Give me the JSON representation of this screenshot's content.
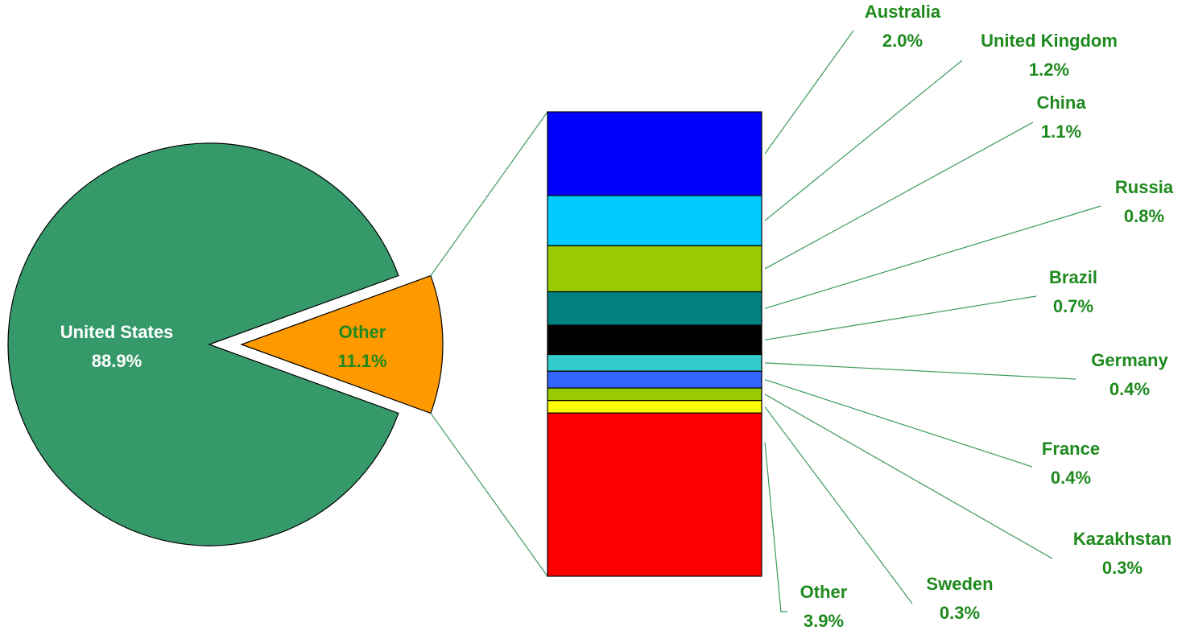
{
  "colors": {
    "label_text": "#1e8a1e",
    "pie_label_text": "#ffffff",
    "leader_line": "#3a9a5a",
    "outline": "#000000"
  },
  "chart_data": {
    "type": "pie",
    "subtype": "bar-of-pie",
    "title": "",
    "grid": false,
    "legend": "none",
    "pie": [
      {
        "name": "United States",
        "value": 88.9,
        "label": "88.9%",
        "color": "#35996a",
        "exploded": false
      },
      {
        "name": "Other",
        "value": 11.1,
        "label": "11.1%",
        "color": "#ff9900",
        "exploded": true
      }
    ],
    "bar": [
      {
        "name": "Australia",
        "value": 2.0,
        "label": "2.0%",
        "color": "#0000ff"
      },
      {
        "name": "United Kingdom",
        "value": 1.2,
        "label": "1.2%",
        "color": "#00ccff"
      },
      {
        "name": "China",
        "value": 1.1,
        "label": "1.1%",
        "color": "#99cc00"
      },
      {
        "name": "Russia",
        "value": 0.8,
        "label": "0.8%",
        "color": "#008080"
      },
      {
        "name": "Brazil",
        "value": 0.7,
        "label": "0.7%",
        "color": "#000000"
      },
      {
        "name": "Germany",
        "value": 0.4,
        "label": "0.4%",
        "color": "#33cccc"
      },
      {
        "name": "France",
        "value": 0.4,
        "label": "0.4%",
        "color": "#3366ff"
      },
      {
        "name": "Kazakhstan",
        "value": 0.3,
        "label": "0.3%",
        "color": "#99cc00"
      },
      {
        "name": "Sweden",
        "value": 0.3,
        "label": "0.3%",
        "color": "#ffff00"
      },
      {
        "name": "Other",
        "value": 3.9,
        "label": "3.9%",
        "color": "#ff0000"
      }
    ]
  }
}
